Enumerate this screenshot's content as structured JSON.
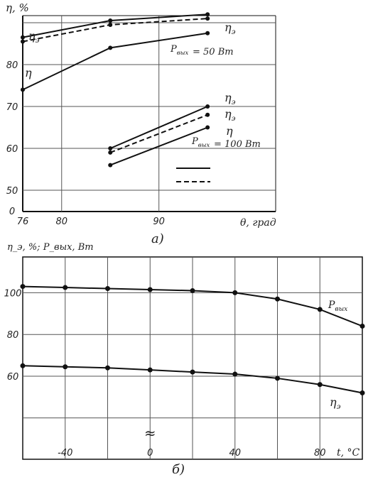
{
  "chart_data": [
    {
      "type": "line",
      "panel_label": "а)",
      "ylabel": "η, %",
      "xlabel": "θ, град",
      "xlim": [
        76,
        102
      ],
      "ylim": [
        0,
        93
      ],
      "y_break": "0 to 45 omitted",
      "x_ticks": [
        "76",
        "80",
        "90"
      ],
      "y_ticks": [
        "50",
        "60",
        "70",
        "80",
        "0"
      ],
      "grid": true,
      "series": [
        {
          "name": "η_э",
          "load": "P_вых = 50 Вт",
          "style": "solid",
          "x": [
            76,
            85,
            95
          ],
          "values": [
            86.5,
            90.5,
            92
          ]
        },
        {
          "name": "",
          "load": "P_вых = 50 Вт",
          "style": "dashed",
          "x": [
            76,
            85,
            95
          ],
          "values": [
            85.5,
            89.5,
            91
          ]
        },
        {
          "name": "η",
          "load": "P_вых = 50 Вт",
          "style": "solid",
          "x": [
            76,
            85,
            95
          ],
          "values": [
            74,
            84,
            87.5
          ]
        },
        {
          "name": "η_э",
          "load": "P_вых = 100 Вт",
          "style": "solid",
          "x": [
            85,
            95
          ],
          "values": [
            60,
            70
          ]
        },
        {
          "name": "η_э",
          "load": "P_вых = 100 Вт",
          "style": "dashed",
          "x": [
            85,
            95
          ],
          "values": [
            59,
            68
          ]
        },
        {
          "name": "η",
          "load": "P_вых = 100 Вт",
          "style": "solid",
          "x": [
            85,
            95
          ],
          "values": [
            56,
            65
          ]
        }
      ],
      "annotations": [
        "P_вых = 50 Вт",
        "P_вых = 100 Вт"
      ],
      "legend": "line-style key (solid / dashed), lower middle"
    },
    {
      "type": "line",
      "panel_label": "б)",
      "ylabel": "η_э, %; P_вых, Вт",
      "xlabel": "t, °C",
      "xlim": [
        -60,
        100
      ],
      "ylim": [
        20,
        125
      ],
      "x_ticks": [
        "-40",
        "0",
        "40",
        "80"
      ],
      "y_ticks": [
        "60",
        "80",
        "100"
      ],
      "grid": true,
      "break_mark": "≈ at t = 0",
      "series": [
        {
          "name": "P_вых",
          "x": [
            -60,
            -40,
            -20,
            0,
            20,
            40,
            60,
            80,
            100
          ],
          "values": [
            103,
            102.5,
            102,
            101.5,
            101,
            100,
            97,
            92,
            84
          ]
        },
        {
          "name": "η_э",
          "x": [
            -60,
            -40,
            -20,
            0,
            20,
            40,
            60,
            80,
            100
          ],
          "values": [
            65,
            64.5,
            64,
            63,
            62,
            61,
            59,
            56,
            52
          ]
        }
      ]
    }
  ]
}
